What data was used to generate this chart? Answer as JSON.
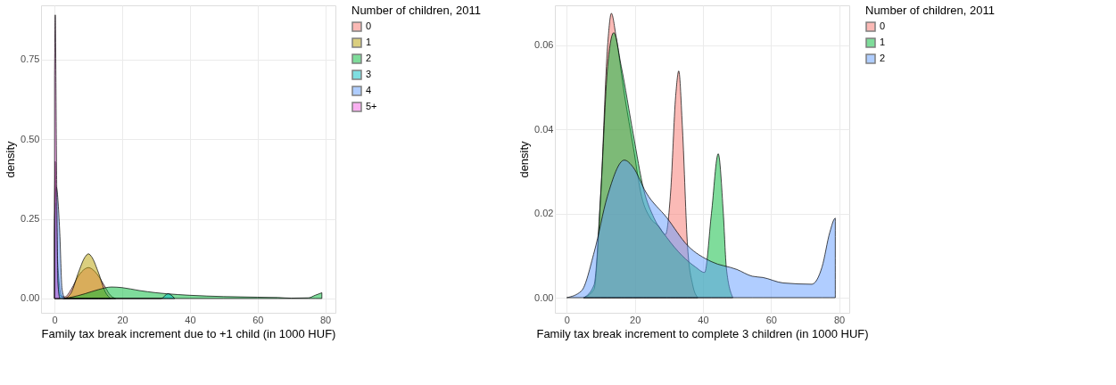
{
  "chart_data": [
    {
      "type": "area",
      "xlabel": "Family tax break increment due to +1 child (in 1000 HUF)",
      "ylabel": "density",
      "legend_title": "Number of children, 2011",
      "legend": "right",
      "grid": true,
      "xlim": [
        -4,
        83
      ],
      "ylim": [
        -0.045,
        0.92
      ],
      "xticks": [
        0,
        20,
        40,
        60,
        80
      ],
      "yticks": [
        {
          "value": 0,
          "label": "0.00"
        },
        {
          "value": 0.25,
          "label": "0.25"
        },
        {
          "value": 0.5,
          "label": "0.50"
        },
        {
          "value": 0.75,
          "label": "0.75"
        }
      ],
      "series": [
        {
          "name": "0",
          "color": "#F8766D",
          "x": [
            0,
            0.2,
            0.7,
            1.5,
            3,
            5,
            7,
            9,
            10,
            11,
            13,
            15,
            16.5,
            18
          ],
          "values": [
            0.3,
            0.43,
            0.1,
            0.01,
            0.005,
            0.03,
            0.07,
            0.093,
            0.097,
            0.093,
            0.07,
            0.035,
            0.01,
            0
          ]
        },
        {
          "name": "1",
          "color": "#B79F00",
          "x": [
            3,
            5,
            7,
            9,
            10,
            11,
            13,
            15,
            16.5
          ],
          "values": [
            0,
            0.02,
            0.08,
            0.13,
            0.14,
            0.13,
            0.08,
            0.02,
            0
          ]
        },
        {
          "name": "2",
          "color": "#00BA38",
          "x": [
            2.5,
            5,
            9,
            13,
            16.8,
            20,
            25,
            30,
            33,
            40,
            50,
            60,
            66,
            70,
            75,
            77,
            79
          ],
          "values": [
            0,
            0.004,
            0.015,
            0.028,
            0.036,
            0.034,
            0.025,
            0.018,
            0.015,
            0.01,
            0.006,
            0.004,
            0.003,
            0.001,
            0.002,
            0.01,
            0.018
          ]
        },
        {
          "name": "3",
          "color": "#00BFC4",
          "x": [
            0,
            0.3,
            1,
            2,
            3,
            31.5,
            33.5,
            35.5
          ],
          "values": [
            0.2,
            0.3,
            0.1,
            0.01,
            0,
            0,
            0.015,
            0
          ]
        },
        {
          "name": "4",
          "color": "#619CFF",
          "x": [
            0,
            0.5,
            1.5,
            2.2,
            3
          ],
          "values": [
            0.25,
            0.35,
            0.215,
            0.03,
            0
          ]
        },
        {
          "name": "5+",
          "color": "#F564E3",
          "x": [
            0,
            0.2,
            0.6,
            1,
            1.5
          ],
          "values": [
            0.7,
            0.89,
            0.4,
            0.05,
            0
          ]
        }
      ]
    },
    {
      "type": "area",
      "xlabel": "Family tax break increment to complete 3 children (in 1000 HUF)",
      "ylabel": "density",
      "legend_title": "Number of children, 2011",
      "legend": "right",
      "grid": true,
      "xlim": [
        -3.5,
        83
      ],
      "ylim": [
        -0.0036,
        0.0695
      ],
      "xticks": [
        0,
        20,
        40,
        60,
        80
      ],
      "yticks": [
        {
          "value": 0,
          "label": "0.00"
        },
        {
          "value": 0.02,
          "label": "0.02"
        },
        {
          "value": 0.04,
          "label": "0.04"
        },
        {
          "value": 0.06,
          "label": "0.06"
        }
      ],
      "series": [
        {
          "name": "0",
          "color": "#F8766D",
          "x": [
            5,
            8,
            10,
            12,
            13.1,
            14.5,
            17,
            19.5,
            22,
            24.5,
            27,
            29,
            30.5,
            32,
            32.9,
            34,
            35.5,
            37,
            38.5
          ],
          "values": [
            0,
            0.002,
            0.025,
            0.06,
            0.0676,
            0.062,
            0.048,
            0.036,
            0.024,
            0.019,
            0.017,
            0.015,
            0.025,
            0.048,
            0.0539,
            0.04,
            0.012,
            0.003,
            0
          ]
        },
        {
          "name": "1",
          "color": "#00BA38",
          "x": [
            5,
            8,
            10,
            12,
            13.8,
            16,
            19.5,
            22.6,
            25.6,
            29.4,
            34,
            37.8,
            40.5,
            42.5,
            44.5,
            46,
            46.9,
            48.8
          ],
          "values": [
            0,
            0.003,
            0.025,
            0.055,
            0.063,
            0.055,
            0.039,
            0.0257,
            0.019,
            0.0143,
            0.0099,
            0.0073,
            0.006,
            0.02,
            0.0342,
            0.02,
            0.007,
            0
          ]
        },
        {
          "name": "2",
          "color": "#619CFF",
          "x": [
            0,
            4.3,
            8.1,
            11.9,
            16.9,
            19.5,
            23.3,
            29.4,
            35.5,
            42.4,
            50,
            54.5,
            57.6,
            63.6,
            72,
            75,
            77.3,
            78.9,
            78.9
          ],
          "values": [
            0,
            0.0016,
            0.011,
            0.024,
            0.0327,
            0.031,
            0.025,
            0.019,
            0.0124,
            0.0086,
            0.0067,
            0.0051,
            0.0048,
            0.0035,
            0.0032,
            0.0073,
            0.0156,
            0.0189,
            0
          ]
        }
      ]
    }
  ]
}
